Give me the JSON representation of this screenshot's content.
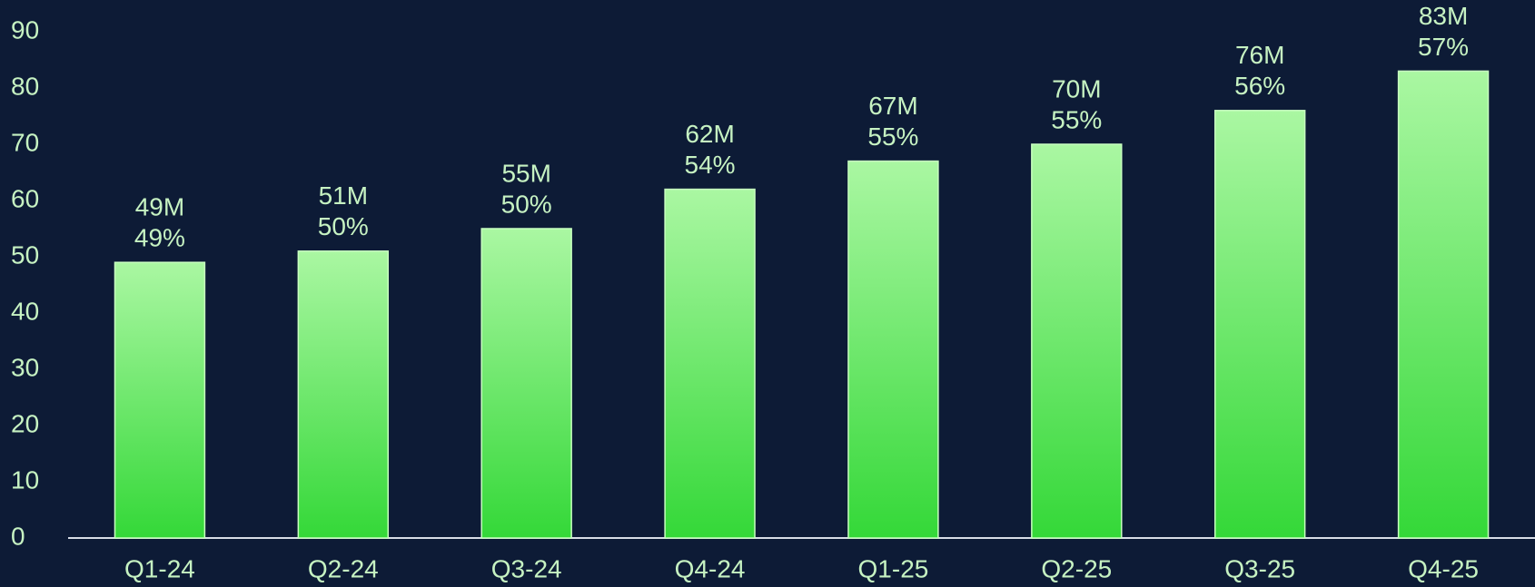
{
  "chart_data": {
    "type": "bar",
    "categories": [
      "Q1-24",
      "Q2-24",
      "Q3-24",
      "Q4-24",
      "Q1-25",
      "Q2-25",
      "Q3-25",
      "Q4-25"
    ],
    "values": [
      49,
      51,
      55,
      62,
      67,
      70,
      76,
      83
    ],
    "value_labels": [
      "49M",
      "51M",
      "55M",
      "62M",
      "67M",
      "70M",
      "76M",
      "83M"
    ],
    "shares": [
      49,
      50,
      50,
      54,
      55,
      55,
      56,
      57
    ],
    "share_labels": [
      "49%",
      "50%",
      "50%",
      "54%",
      "55%",
      "55%",
      "56%",
      "57%"
    ],
    "gradient": [
      "#aaf7a2",
      "#34d838"
    ],
    "ylim": [
      0,
      90
    ],
    "yticks": [
      0,
      10,
      20,
      30,
      40,
      50,
      60,
      70,
      80,
      90
    ],
    "grid": false
  }
}
